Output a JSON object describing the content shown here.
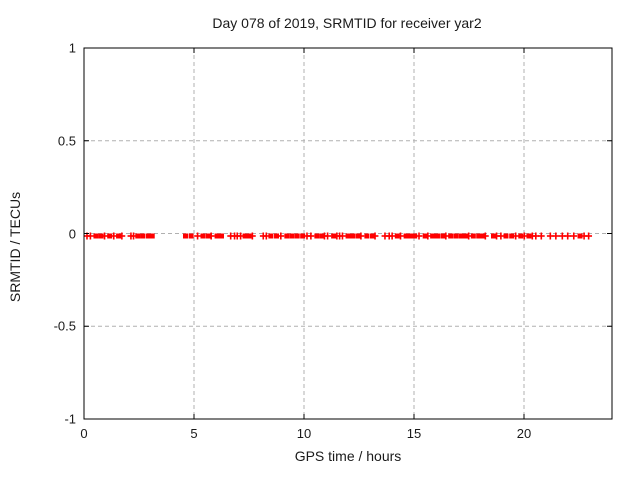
{
  "chart_data": {
    "type": "scatter",
    "title": "Day 078 of 2019, SRMTID for receiver yar2",
    "xlabel": "GPS time / hours",
    "ylabel": "SRMTID / TECUs",
    "xlim": [
      0,
      24
    ],
    "ylim": [
      -1,
      1
    ],
    "xticks": [
      0,
      5,
      10,
      15,
      20
    ],
    "xtick_labels": [
      "0",
      "5",
      "10",
      "15",
      "20"
    ],
    "yticks": [
      1,
      0.5,
      0,
      -0.5,
      -1
    ],
    "ytick_labels": [
      "1",
      "0.5",
      "0",
      "-0.5",
      "-1"
    ],
    "grid": true,
    "legend_position": "none",
    "colors": {
      "marker": "#ff0000",
      "grid": "#b0b0b0",
      "axis": "#000000",
      "background": "#ffffff"
    },
    "series": [
      {
        "name": "SRMTID",
        "y_value": 0,
        "segments": [
          {
            "x_start": 0.1,
            "x_end": 2.35,
            "density": "dense"
          },
          {
            "x_start": 2.55,
            "x_end": 3.05,
            "density": "dense"
          },
          {
            "x_start": 4.5,
            "x_end": 9.9,
            "density": "dense"
          },
          {
            "x_start": 10.1,
            "x_end": 14.2,
            "density": "dense"
          },
          {
            "x_start": 14.35,
            "x_end": 18.3,
            "density": "dense"
          },
          {
            "x_start": 18.5,
            "x_end": 20.6,
            "density": "dense"
          },
          {
            "x_start": 20.75,
            "x_end": 22.95,
            "density": "sparse"
          }
        ]
      }
    ]
  }
}
